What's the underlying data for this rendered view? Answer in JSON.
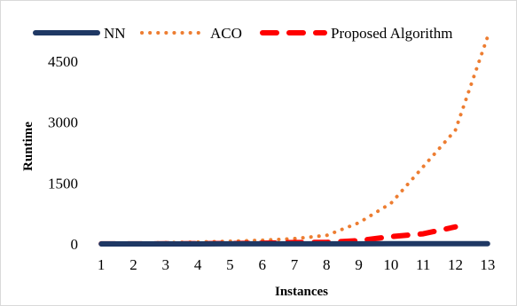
{
  "chart_data": {
    "type": "line",
    "title": "",
    "xlabel": "Instances",
    "ylabel": "Runtime",
    "categories": [
      "1",
      "2",
      "3",
      "4",
      "5",
      "6",
      "7",
      "8",
      "9",
      "10",
      "11",
      "12",
      "13"
    ],
    "ylim": [
      0,
      5200
    ],
    "yticks": [
      0,
      1500,
      3000,
      4500
    ],
    "grid": false,
    "legend_position": "top",
    "series": [
      {
        "name": "NN",
        "color": "#1f3864",
        "style": "solid",
        "values": [
          1,
          1,
          1,
          1,
          2,
          2,
          2,
          3,
          3,
          4,
          4,
          5,
          6
        ]
      },
      {
        "name": "ACO",
        "color": "#ed7d31",
        "style": "dotted",
        "values": [
          5,
          15,
          30,
          45,
          65,
          90,
          130,
          210,
          520,
          1000,
          1900,
          2800,
          5100
        ]
      },
      {
        "name": "Proposed Algorithm",
        "color": "#ff0000",
        "style": "dashed",
        "values": [
          2,
          3,
          5,
          8,
          12,
          20,
          35,
          40,
          80,
          180,
          250,
          420,
          null
        ]
      }
    ]
  }
}
